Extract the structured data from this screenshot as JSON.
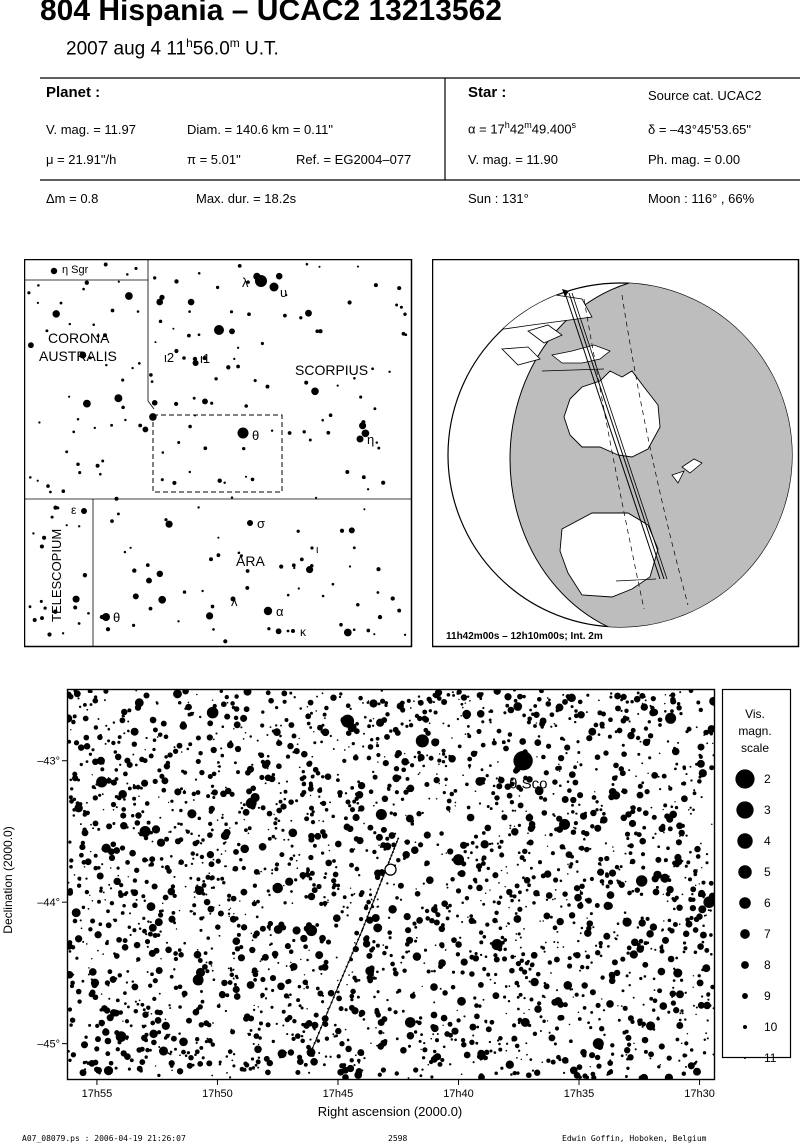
{
  "header": {
    "title": "804 Hispania  –  UCAC2 13213562",
    "date_prefix": "2007 aug  4  11",
    "date_h": "h",
    "date_min": "56.0",
    "date_m": "m",
    "date_suffix": " U.T.",
    "planet_label": "Planet :",
    "star_label": "Star :",
    "source_cat": "Source cat.  UCAC2",
    "vmag_planet": "V. mag. = 11.97",
    "diam": "Diam. = 140.6 km = 0.11\"",
    "mu": "μ =  21.91\"/h",
    "pi": "π =  5.01\"",
    "ref": "Ref. = EG2004–077",
    "alpha_prefix": "α = 17",
    "alpha_h": "h",
    "alpha_min": "42",
    "alpha_m": "m",
    "alpha_sec": "49.400",
    "alpha_s": "s",
    "delta": "δ = –43°45'53.65\"",
    "vmag_star": "V. mag. = 11.90",
    "phmag": "Ph. mag. =  0.00",
    "dm": "Δm = 0.8",
    "maxdur": "Max. dur. = 18.2s",
    "sun": "Sun : 131°",
    "moon": "Moon : 116° , 66%"
  },
  "finder": {
    "constellations": [
      "CORONA",
      "AUSTRALIS",
      "SCORPIUS",
      "TELESCOPIUM",
      "ARA",
      "η Sgr"
    ],
    "greek_labels": [
      {
        "text": "λ",
        "id": "lambda-sco"
      },
      {
        "text": "υ",
        "id": "upsilon-sco"
      },
      {
        "text": "ι2",
        "id": "iota2-sco"
      },
      {
        "text": "ι1",
        "id": "iota1-sco"
      },
      {
        "text": "θ",
        "id": "theta-sco"
      },
      {
        "text": "η",
        "id": "eta-sco"
      },
      {
        "text": "ε",
        "id": "epsilon-tel"
      },
      {
        "text": "θ",
        "id": "theta-ara"
      },
      {
        "text": "σ",
        "id": "sigma-ara"
      },
      {
        "text": "ι",
        "id": "iota-ara"
      },
      {
        "text": "λ",
        "id": "lambda-ara"
      },
      {
        "text": "α",
        "id": "alpha-ara"
      },
      {
        "text": "κ",
        "id": "kappa-ara"
      }
    ]
  },
  "globe": {
    "caption": "11h42m00s – 12h10m00s; Int.  2m",
    "colors": {
      "night": "#bdbdbd",
      "day": "#ffffff",
      "land": "#ffffff"
    }
  },
  "chart_data": {
    "type": "scatter",
    "title": "",
    "xlabel": "Right ascension (2000.0)",
    "ylabel": "Declination (2000.0)",
    "x_ticks": [
      "17h55",
      "17h50",
      "17h45",
      "17h40",
      "17h35",
      "17h30"
    ],
    "x_tick_minutes": [
      55,
      50,
      45,
      40,
      35,
      30
    ],
    "x_range_minutes": [
      56.2,
      29.4
    ],
    "y_ticks": [
      "-43°",
      "-44°",
      "-45°"
    ],
    "y_tick_values": [
      -43,
      -44,
      -45
    ],
    "y_range": [
      -42.5,
      -45.25
    ],
    "grid": false,
    "star_label": "θ Sco",
    "scale_title": [
      "Vis.",
      "magn.",
      "scale"
    ],
    "mag_scale": [
      2,
      3,
      4,
      5,
      6,
      7,
      8,
      9,
      10,
      11
    ],
    "bright_stars": [
      {
        "ra_min": 37.32,
        "dec": -43.0,
        "mag": 1.9
      },
      {
        "ra_min": 41.5,
        "dec": -42.86,
        "mag": 5.2
      },
      {
        "ra_min": 44.6,
        "dec": -42.72,
        "mag": 5.3
      },
      {
        "ra_min": 50.2,
        "dec": -42.66,
        "mag": 6.0
      },
      {
        "ra_min": 54.8,
        "dec": -43.15,
        "mag": 6.2
      },
      {
        "ra_min": 53.0,
        "dec": -43.5,
        "mag": 6.3
      },
      {
        "ra_min": 48.6,
        "dec": -43.3,
        "mag": 6.4
      },
      {
        "ra_min": 43.2,
        "dec": -43.38,
        "mag": 6.3
      },
      {
        "ra_min": 40.0,
        "dec": -43.7,
        "mag": 6.2
      },
      {
        "ra_min": 35.6,
        "dec": -43.45,
        "mag": 6.3
      },
      {
        "ra_min": 32.4,
        "dec": -43.85,
        "mag": 6.1
      },
      {
        "ra_min": 29.6,
        "dec": -44.0,
        "mag": 6.0
      },
      {
        "ra_min": 46.1,
        "dec": -44.2,
        "mag": 6.2
      },
      {
        "ra_min": 50.8,
        "dec": -44.55,
        "mag": 6.4
      },
      {
        "ra_min": 38.4,
        "dec": -44.3,
        "mag": 6.2
      },
      {
        "ra_min": 34.2,
        "dec": -45.0,
        "mag": 6.3
      },
      {
        "ra_min": 42.0,
        "dec": -44.85,
        "mag": 6.5
      },
      {
        "ra_min": 54.0,
        "dec": -44.95,
        "mag": 6.5
      },
      {
        "ra_min": 31.2,
        "dec": -42.7,
        "mag": 6.3
      },
      {
        "ra_min": 47.5,
        "dec": -43.9,
        "mag": 6.6
      }
    ],
    "track": {
      "ra_min": [
        42.5,
        43.2,
        44.0,
        45.0,
        46.1
      ],
      "dec": [
        -43.55,
        -43.85,
        -44.2,
        -44.6,
        -45.05
      ],
      "target_ra_min": 42.82,
      "target_dec": -43.77
    }
  },
  "footer": {
    "left": "A07_08079.ps : 2006-04-19 21:26:07",
    "center": "2598",
    "right": "Edwin Goffin, Hoboken, Belgium"
  }
}
